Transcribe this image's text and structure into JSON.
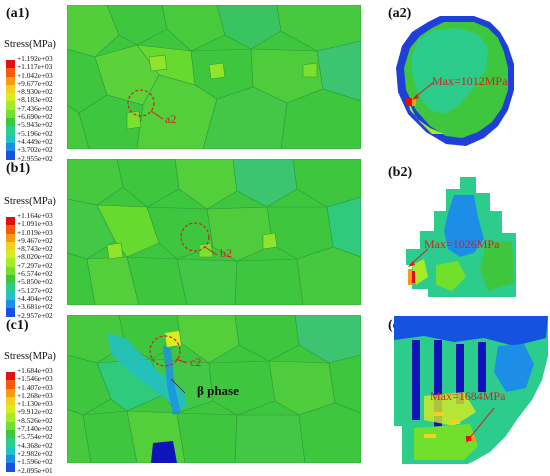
{
  "panels": {
    "a1": "(a1)",
    "a2": "(a2)",
    "b1": "(b1)",
    "b2": "(b2)",
    "c1": "(c1)",
    "c2": "(c2)"
  },
  "legend_title": "Stress(MPa)",
  "legends": {
    "a": [
      "+1.192e+03",
      "+1.117e+03",
      "+1.042e+03",
      "+9.677e+02",
      "+8.930e+02",
      "+8.183e+02",
      "+7.436e+02",
      "+6.690e+02",
      "+5.943e+02",
      "+5.196e+02",
      "+4.449e+02",
      "+3.702e+02",
      "+2.955e+02"
    ],
    "b": [
      "+1.164e+03",
      "+1.091e+03",
      "+1.019e+03",
      "+9.467e+02",
      "+8.743e+02",
      "+8.020e+02",
      "+7.297e+02",
      "+6.574e+02",
      "+5.850e+02",
      "+5.127e+02",
      "+4.404e+02",
      "+3.681e+02",
      "+2.957e+02"
    ],
    "c": [
      "+1.684e+03",
      "+1.546e+03",
      "+1.407e+03",
      "+1.268e+03",
      "+1.130e+03",
      "+9.912e+02",
      "+8.526e+02",
      "+7.140e+02",
      "+5.754e+02",
      "+4.368e+02",
      "+2.982e+02",
      "+1.596e+02",
      "+2.095e+01"
    ]
  },
  "legend_colors": [
    "#e01010",
    "#f45a0a",
    "#f79a14",
    "#f4d020",
    "#d8ec22",
    "#a6ec26",
    "#70e02c",
    "#3ec63e",
    "#2ccc8c",
    "#22c0c8",
    "#1c8ee8",
    "#1552e0",
    "#1014b8"
  ],
  "annotations": {
    "a_circle": "a2",
    "b_circle": "b2",
    "c_circle": "c2",
    "beta": "β phase",
    "max_a": "Max=1012MPa",
    "max_b": "Max=1026MPa",
    "max_c": "Max=1684MPa"
  }
}
